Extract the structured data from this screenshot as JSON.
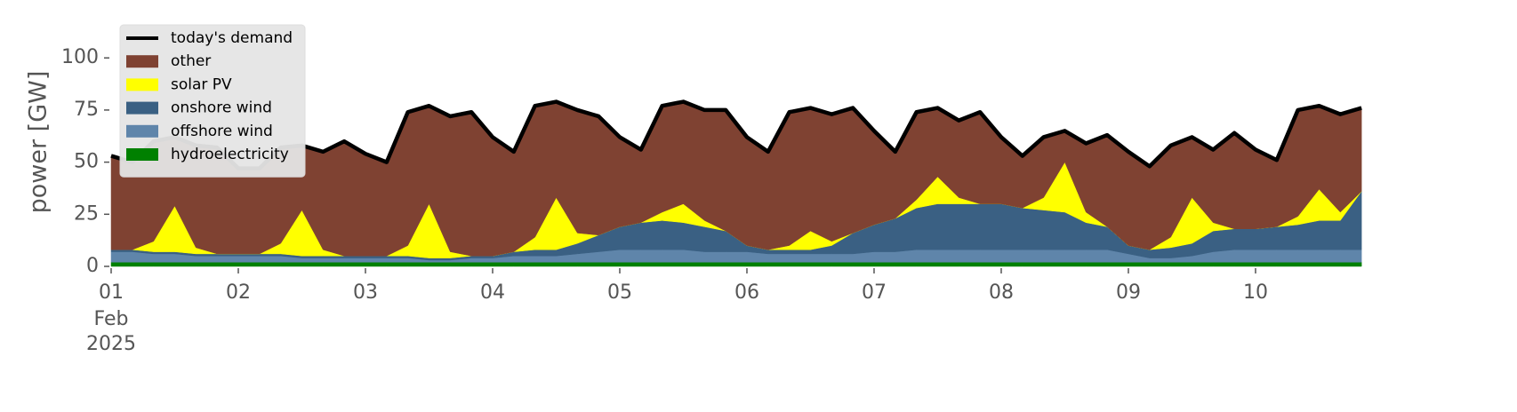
{
  "chart_data": {
    "type": "area",
    "y_label": "power [GW]",
    "ylim": [
      0,
      115
    ],
    "yticks": [
      0,
      25,
      50,
      75,
      100
    ],
    "xlim": [
      "2025-02-01 00:00",
      "2025-02-10 23:00"
    ],
    "xticks": [
      {
        "value": "2025-02-01 00:00",
        "label": "01"
      },
      {
        "value": "2025-02-02 00:00",
        "label": "02"
      },
      {
        "value": "2025-02-03 00:00",
        "label": "03"
      },
      {
        "value": "2025-02-04 00:00",
        "label": "04"
      },
      {
        "value": "2025-02-05 00:00",
        "label": "05"
      },
      {
        "value": "2025-02-06 00:00",
        "label": "06"
      },
      {
        "value": "2025-02-07 00:00",
        "label": "07"
      },
      {
        "value": "2025-02-08 00:00",
        "label": "08"
      },
      {
        "value": "2025-02-09 00:00",
        "label": "09"
      },
      {
        "value": "2025-02-10 00:00",
        "label": "10"
      }
    ],
    "x_month_label": "Feb",
    "x_year_label": "2025",
    "legend": "upper left",
    "x": [
      "2025-02-01 00:00",
      "2025-02-01 04:00",
      "2025-02-01 08:00",
      "2025-02-01 12:00",
      "2025-02-01 16:00",
      "2025-02-01 20:00",
      "2025-02-02 00:00",
      "2025-02-02 04:00",
      "2025-02-02 08:00",
      "2025-02-02 12:00",
      "2025-02-02 16:00",
      "2025-02-02 20:00",
      "2025-02-03 00:00",
      "2025-02-03 04:00",
      "2025-02-03 08:00",
      "2025-02-03 12:00",
      "2025-02-03 16:00",
      "2025-02-03 20:00",
      "2025-02-04 00:00",
      "2025-02-04 04:00",
      "2025-02-04 08:00",
      "2025-02-04 12:00",
      "2025-02-04 16:00",
      "2025-02-04 20:00",
      "2025-02-05 00:00",
      "2025-02-05 04:00",
      "2025-02-05 08:00",
      "2025-02-05 12:00",
      "2025-02-05 16:00",
      "2025-02-05 20:00",
      "2025-02-06 00:00",
      "2025-02-06 04:00",
      "2025-02-06 08:00",
      "2025-02-06 12:00",
      "2025-02-06 16:00",
      "2025-02-06 20:00",
      "2025-02-07 00:00",
      "2025-02-07 04:00",
      "2025-02-07 08:00",
      "2025-02-07 12:00",
      "2025-02-07 16:00",
      "2025-02-07 20:00",
      "2025-02-08 00:00",
      "2025-02-08 04:00",
      "2025-02-08 08:00",
      "2025-02-08 12:00",
      "2025-02-08 16:00",
      "2025-02-08 20:00",
      "2025-02-09 00:00",
      "2025-02-09 04:00",
      "2025-02-09 08:00",
      "2025-02-09 12:00",
      "2025-02-09 16:00",
      "2025-02-09 20:00",
      "2025-02-10 00:00",
      "2025-02-10 04:00",
      "2025-02-10 08:00",
      "2025-02-10 12:00",
      "2025-02-10 16:00",
      "2025-02-10 20:00"
    ],
    "line": {
      "name": "today's demand",
      "color": "#000000",
      "values": [
        53,
        50,
        60,
        62,
        58,
        57,
        47,
        47,
        57,
        58,
        55,
        60,
        54,
        50,
        74,
        77,
        72,
        74,
        62,
        55,
        77,
        79,
        75,
        72,
        62,
        56,
        77,
        79,
        75,
        75,
        62,
        55,
        74,
        76,
        73,
        76,
        65,
        55,
        74,
        76,
        70,
        74,
        62,
        53,
        62,
        65,
        59,
        63,
        55,
        48,
        58,
        62,
        56,
        64,
        56,
        51,
        75,
        77,
        73,
        76
      ]
    },
    "series": [
      {
        "name": "other",
        "color": "#7f4232",
        "values": [
          45,
          42,
          48,
          33,
          49,
          51,
          41,
          41,
          46,
          31,
          47,
          55,
          49,
          45,
          64,
          47,
          65,
          69,
          57,
          48,
          63,
          46,
          59,
          57,
          43,
          35,
          51,
          49,
          53,
          58,
          52,
          47,
          64,
          59,
          61,
          60,
          45,
          32,
          42,
          33,
          37,
          44,
          32,
          25,
          29,
          15,
          33,
          44,
          45,
          40,
          44,
          29,
          35,
          46,
          38,
          32,
          51,
          40,
          47,
          40
        ]
      },
      {
        "name": "solar PV",
        "color": "#ffff00",
        "values": [
          0,
          0,
          5,
          22,
          3,
          0,
          0,
          0,
          5,
          22,
          3,
          0,
          0,
          0,
          5,
          26,
          3,
          0,
          0,
          0,
          6,
          25,
          5,
          0,
          0,
          0,
          4,
          9,
          3,
          0,
          0,
          0,
          2,
          9,
          2,
          0,
          0,
          0,
          4,
          13,
          3,
          0,
          0,
          0,
          6,
          24,
          5,
          0,
          0,
          0,
          5,
          22,
          4,
          0,
          0,
          0,
          4,
          15,
          4,
          0
        ]
      },
      {
        "name": "onshore wind",
        "color": "#3a6083",
        "values": [
          1,
          1,
          1,
          1,
          1,
          1,
          1,
          1,
          1,
          1,
          1,
          1,
          1,
          1,
          1,
          1,
          1,
          1,
          1,
          2,
          3,
          3,
          5,
          8,
          11,
          13,
          14,
          13,
          12,
          10,
          3,
          2,
          2,
          2,
          4,
          10,
          13,
          16,
          20,
          22,
          22,
          22,
          22,
          20,
          19,
          18,
          13,
          11,
          4,
          4,
          5,
          6,
          10,
          10,
          10,
          11,
          12,
          14,
          14,
          28
        ]
      },
      {
        "name": "offshore wind",
        "color": "#5f85aa",
        "values": [
          5,
          5,
          4,
          4,
          3,
          3,
          3,
          3,
          3,
          2,
          2,
          2,
          2,
          2,
          2,
          1,
          1,
          2,
          2,
          3,
          3,
          3,
          4,
          5,
          6,
          6,
          6,
          6,
          5,
          5,
          5,
          4,
          4,
          4,
          4,
          4,
          5,
          5,
          6,
          6,
          6,
          6,
          6,
          6,
          6,
          6,
          6,
          6,
          4,
          2,
          2,
          3,
          5,
          6,
          6,
          6,
          6,
          6,
          6,
          6
        ]
      },
      {
        "name": "hydroelectricity",
        "color": "#008000",
        "values": [
          2,
          2,
          2,
          2,
          2,
          2,
          2,
          2,
          2,
          2,
          2,
          2,
          2,
          2,
          2,
          2,
          2,
          2,
          2,
          2,
          2,
          2,
          2,
          2,
          2,
          2,
          2,
          2,
          2,
          2,
          2,
          2,
          2,
          2,
          2,
          2,
          2,
          2,
          2,
          2,
          2,
          2,
          2,
          2,
          2,
          2,
          2,
          2,
          2,
          2,
          2,
          2,
          2,
          2,
          2,
          2,
          2,
          2,
          2,
          2
        ]
      }
    ]
  }
}
